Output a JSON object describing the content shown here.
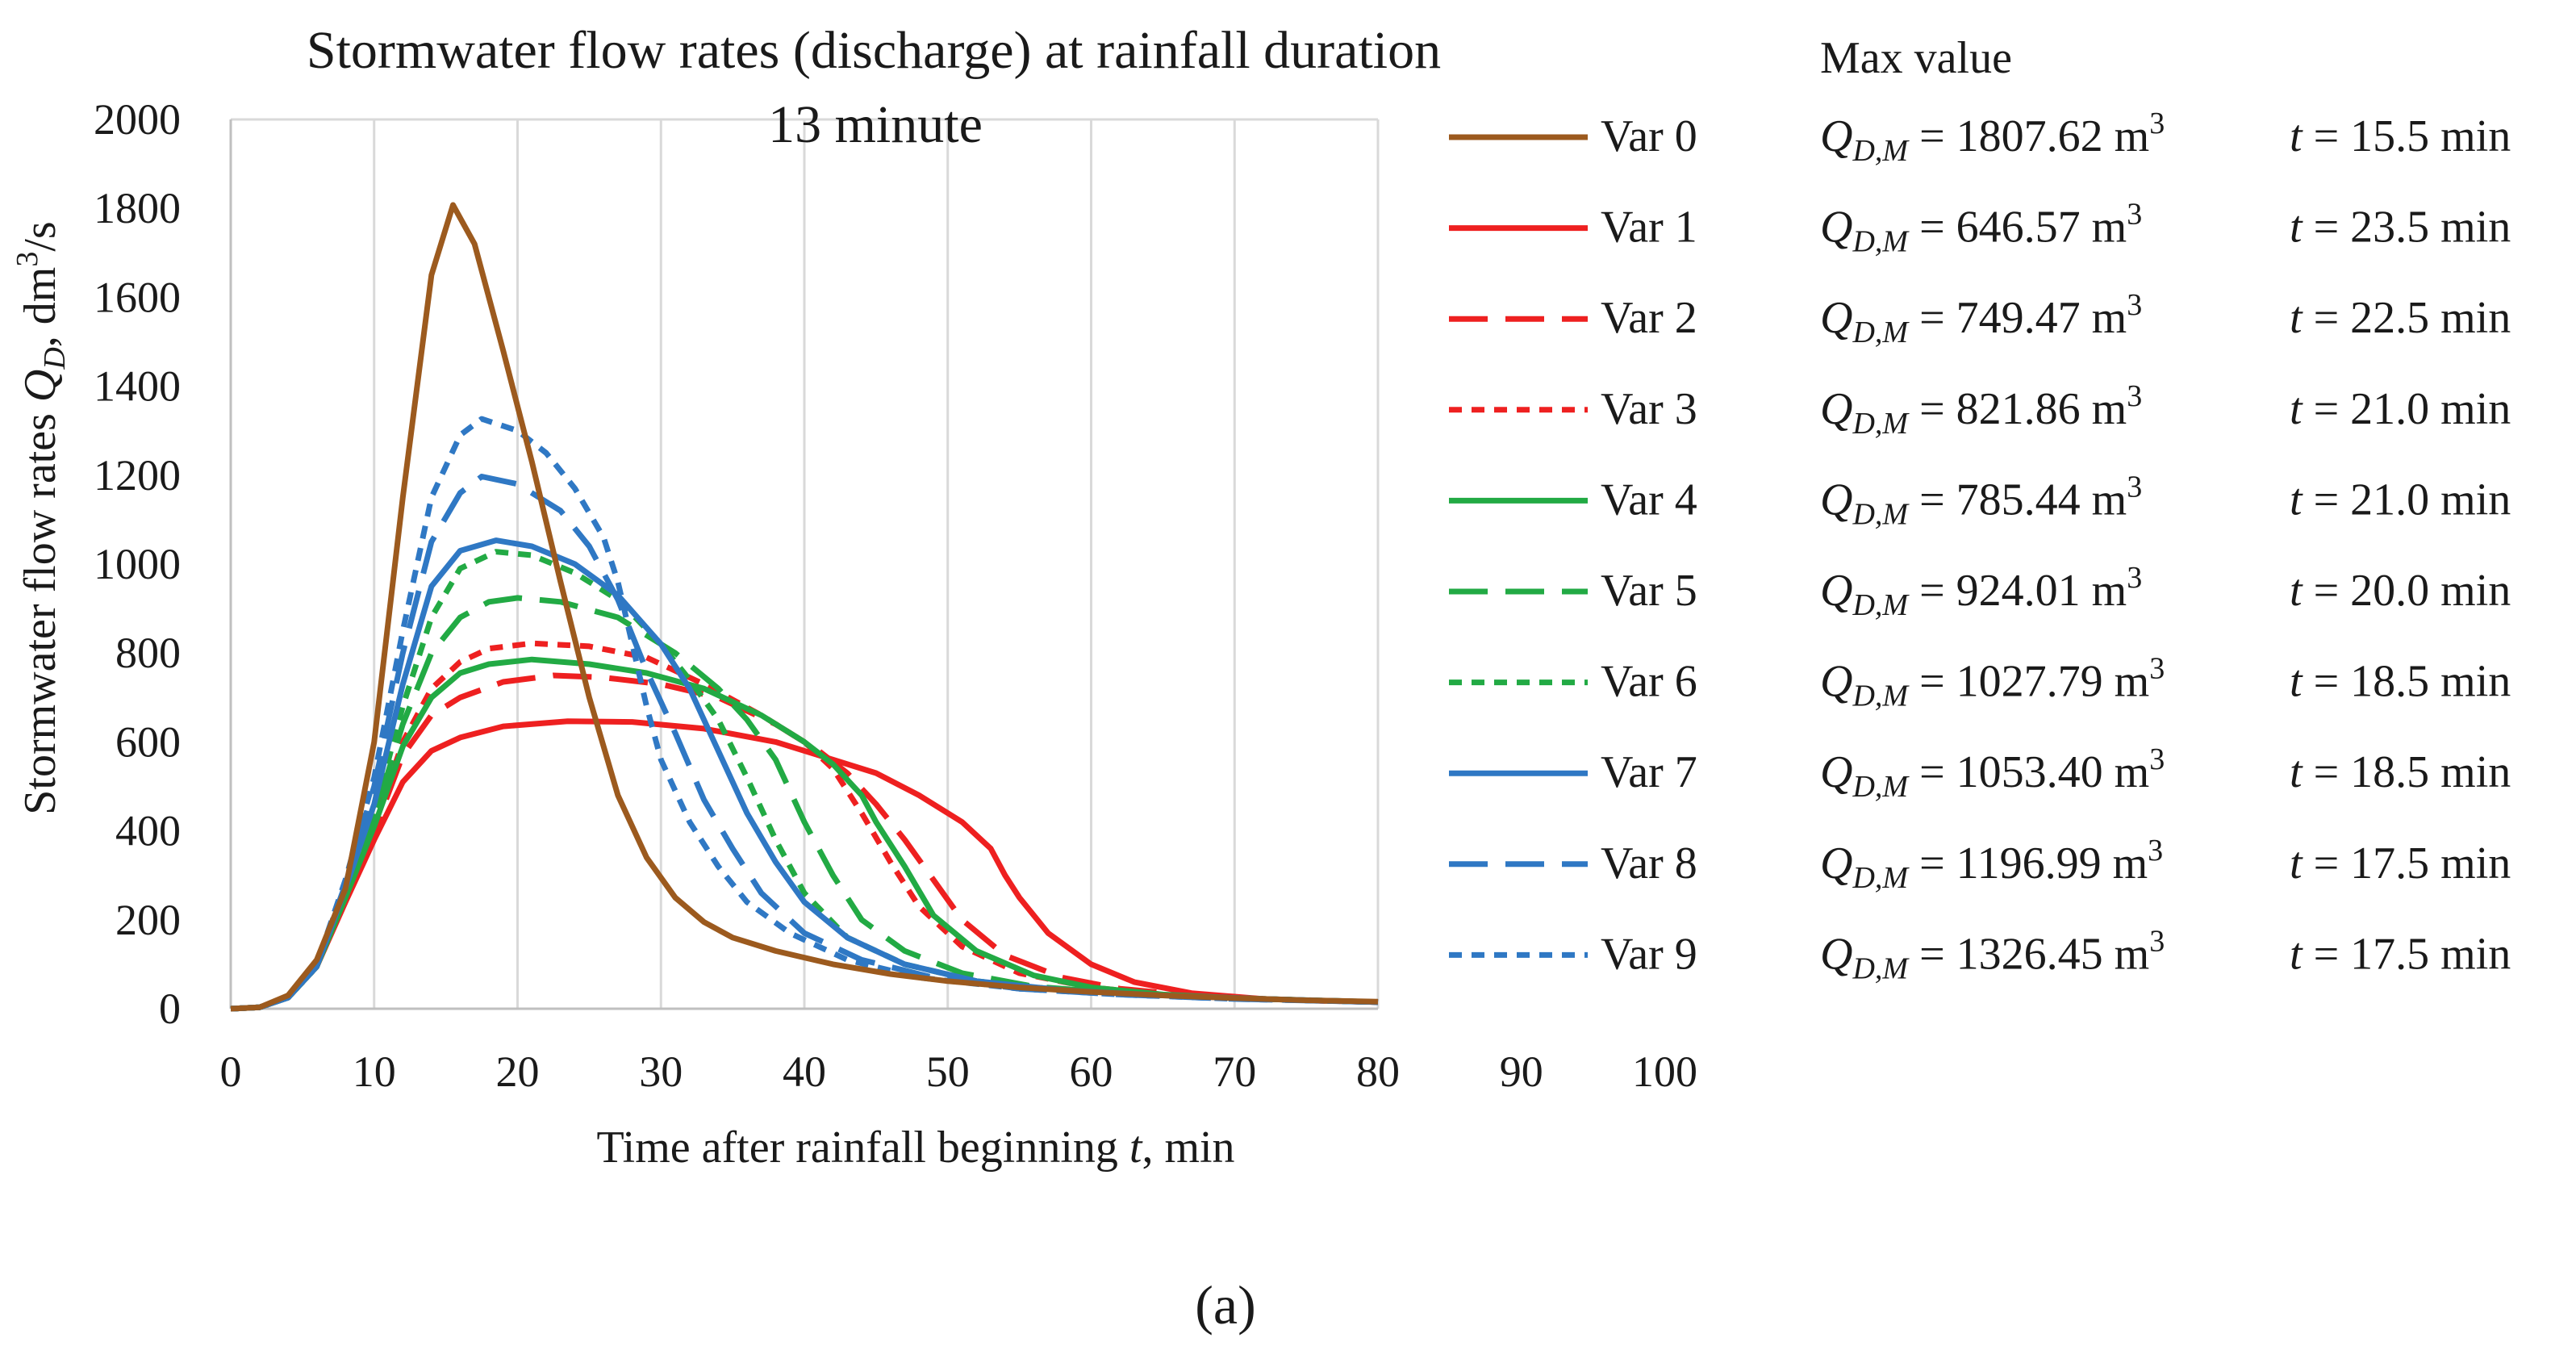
{
  "caption": "(a)",
  "chart_data": {
    "type": "line",
    "title_line1": "Stormwater flow rates (discharge) at rainfall duration",
    "title_line2": "13 minute",
    "xlabel_prefix": "Time after rainfall beginning ",
    "xlabel_var": "t",
    "xlabel_suffix": ", min",
    "ylabel_prefix": "Stormwater flow rates ",
    "ylabel_var": "Q",
    "ylabel_sub": "D",
    "ylabel_mid": ", dm",
    "ylabel_sup": "3",
    "ylabel_suffix": "/s",
    "xlim": [
      0,
      100
    ],
    "ylim": [
      0,
      2000
    ],
    "xticks": [
      0,
      10,
      20,
      30,
      40,
      50,
      60,
      70,
      80,
      90,
      100
    ],
    "yticks": [
      0,
      200,
      400,
      600,
      800,
      1000,
      1200,
      1400,
      1600,
      1800,
      2000
    ],
    "grid": "vertical",
    "legend_header": "Max value",
    "max_label_var": "Q",
    "max_label_sub": "D,M",
    "max_unit": "m",
    "max_unit_sup": "3",
    "time_var": "t",
    "time_unit": "min",
    "series": [
      {
        "name": "Var 0",
        "color": "#9C5A1E",
        "dash": "solid",
        "max": "1807.62",
        "t": "15.5",
        "points": [
          [
            0,
            0
          ],
          [
            2,
            3
          ],
          [
            4,
            30
          ],
          [
            6,
            110
          ],
          [
            8,
            270
          ],
          [
            10,
            600
          ],
          [
            12,
            1150
          ],
          [
            14,
            1650
          ],
          [
            15.5,
            1807.62
          ],
          [
            17,
            1720
          ],
          [
            19,
            1480
          ],
          [
            21,
            1230
          ],
          [
            23,
            960
          ],
          [
            25,
            700
          ],
          [
            27,
            480
          ],
          [
            29,
            340
          ],
          [
            31,
            250
          ],
          [
            33,
            195
          ],
          [
            35,
            160
          ],
          [
            38,
            130
          ],
          [
            42,
            100
          ],
          [
            46,
            78
          ],
          [
            50,
            62
          ],
          [
            55,
            48
          ],
          [
            60,
            38
          ],
          [
            65,
            30
          ],
          [
            70,
            24
          ],
          [
            75,
            19
          ],
          [
            80,
            16
          ]
        ]
      },
      {
        "name": "Var 1",
        "color": "#EE2020",
        "dash": "solid",
        "max": "646.57",
        "t": "23.5",
        "points": [
          [
            0,
            0
          ],
          [
            2,
            3
          ],
          [
            4,
            25
          ],
          [
            6,
            95
          ],
          [
            8,
            240
          ],
          [
            10,
            380
          ],
          [
            12,
            510
          ],
          [
            14,
            580
          ],
          [
            16,
            610
          ],
          [
            19,
            635
          ],
          [
            23.5,
            646.57
          ],
          [
            28,
            645
          ],
          [
            33,
            630
          ],
          [
            38,
            600
          ],
          [
            42,
            560
          ],
          [
            45,
            530
          ],
          [
            48,
            480
          ],
          [
            51,
            420
          ],
          [
            53,
            360
          ],
          [
            54,
            300
          ],
          [
            55,
            250
          ],
          [
            57,
            170
          ],
          [
            60,
            100
          ],
          [
            63,
            60
          ],
          [
            67,
            35
          ],
          [
            72,
            22
          ],
          [
            76,
            18
          ],
          [
            80,
            15
          ]
        ]
      },
      {
        "name": "Var 2",
        "color": "#EE2020",
        "dash": "long",
        "max": "749.47",
        "t": "22.5",
        "points": [
          [
            0,
            0
          ],
          [
            2,
            3
          ],
          [
            4,
            25
          ],
          [
            6,
            95
          ],
          [
            8,
            250
          ],
          [
            10,
            400
          ],
          [
            12,
            570
          ],
          [
            14,
            660
          ],
          [
            16,
            700
          ],
          [
            19,
            735
          ],
          [
            22.5,
            749.47
          ],
          [
            26,
            745
          ],
          [
            30,
            730
          ],
          [
            34,
            700
          ],
          [
            38,
            640
          ],
          [
            41,
            580
          ],
          [
            43,
            530
          ],
          [
            45,
            460
          ],
          [
            47,
            380
          ],
          [
            49,
            290
          ],
          [
            51,
            200
          ],
          [
            54,
            120
          ],
          [
            58,
            70
          ],
          [
            62,
            45
          ],
          [
            67,
            30
          ],
          [
            72,
            22
          ],
          [
            76,
            18
          ],
          [
            80,
            15
          ]
        ]
      },
      {
        "name": "Var 3",
        "color": "#EE2020",
        "dash": "short",
        "max": "821.86",
        "t": "21.0",
        "points": [
          [
            0,
            0
          ],
          [
            2,
            3
          ],
          [
            4,
            25
          ],
          [
            6,
            95
          ],
          [
            8,
            250
          ],
          [
            10,
            410
          ],
          [
            12,
            600
          ],
          [
            14,
            720
          ],
          [
            16,
            780
          ],
          [
            18,
            810
          ],
          [
            21,
            821.86
          ],
          [
            25,
            815
          ],
          [
            29,
            790
          ],
          [
            33,
            730
          ],
          [
            37,
            660
          ],
          [
            40,
            600
          ],
          [
            42,
            540
          ],
          [
            44,
            440
          ],
          [
            46,
            330
          ],
          [
            48,
            230
          ],
          [
            51,
            140
          ],
          [
            55,
            80
          ],
          [
            60,
            48
          ],
          [
            65,
            32
          ],
          [
            70,
            24
          ],
          [
            75,
            19
          ],
          [
            80,
            15
          ]
        ]
      },
      {
        "name": "Var 4",
        "color": "#22AA44",
        "dash": "solid",
        "max": "785.44",
        "t": "21.0",
        "points": [
          [
            0,
            0
          ],
          [
            2,
            3
          ],
          [
            4,
            25
          ],
          [
            6,
            95
          ],
          [
            8,
            250
          ],
          [
            10,
            410
          ],
          [
            12,
            590
          ],
          [
            14,
            700
          ],
          [
            16,
            755
          ],
          [
            18,
            775
          ],
          [
            21,
            785.44
          ],
          [
            25,
            775
          ],
          [
            29,
            755
          ],
          [
            33,
            720
          ],
          [
            37,
            660
          ],
          [
            40,
            600
          ],
          [
            42,
            550
          ],
          [
            44,
            480
          ],
          [
            45,
            420
          ],
          [
            47,
            320
          ],
          [
            49,
            210
          ],
          [
            52,
            130
          ],
          [
            56,
            75
          ],
          [
            60,
            48
          ],
          [
            65,
            32
          ],
          [
            70,
            24
          ],
          [
            75,
            19
          ],
          [
            80,
            15
          ]
        ]
      },
      {
        "name": "Var 5",
        "color": "#22AA44",
        "dash": "long",
        "max": "924.01",
        "t": "20.0",
        "points": [
          [
            0,
            0
          ],
          [
            2,
            3
          ],
          [
            4,
            25
          ],
          [
            6,
            95
          ],
          [
            8,
            260
          ],
          [
            10,
            430
          ],
          [
            12,
            640
          ],
          [
            14,
            800
          ],
          [
            16,
            880
          ],
          [
            18,
            915
          ],
          [
            20,
            924.01
          ],
          [
            23,
            915
          ],
          [
            27,
            880
          ],
          [
            31,
            800
          ],
          [
            34,
            720
          ],
          [
            36,
            650
          ],
          [
            38,
            560
          ],
          [
            40,
            420
          ],
          [
            42,
            300
          ],
          [
            44,
            200
          ],
          [
            47,
            130
          ],
          [
            51,
            80
          ],
          [
            56,
            50
          ],
          [
            62,
            35
          ],
          [
            68,
            26
          ],
          [
            74,
            20
          ],
          [
            80,
            15
          ]
        ]
      },
      {
        "name": "Var 6",
        "color": "#22AA44",
        "dash": "short",
        "max": "1027.79",
        "t": "18.5",
        "points": [
          [
            0,
            0
          ],
          [
            2,
            3
          ],
          [
            4,
            25
          ],
          [
            6,
            95
          ],
          [
            8,
            260
          ],
          [
            10,
            440
          ],
          [
            12,
            680
          ],
          [
            14,
            880
          ],
          [
            16,
            990
          ],
          [
            18.5,
            1027.79
          ],
          [
            21,
            1020
          ],
          [
            24,
            980
          ],
          [
            27,
            920
          ],
          [
            30,
            820
          ],
          [
            32,
            740
          ],
          [
            34,
            650
          ],
          [
            36,
            520
          ],
          [
            38,
            380
          ],
          [
            40,
            260
          ],
          [
            43,
            160
          ],
          [
            47,
            100
          ],
          [
            52,
            62
          ],
          [
            58,
            42
          ],
          [
            65,
            30
          ],
          [
            72,
            22
          ],
          [
            80,
            15
          ]
        ]
      },
      {
        "name": "Var 7",
        "color": "#2F78C4",
        "dash": "solid",
        "max": "1053.40",
        "t": "18.5",
        "points": [
          [
            0,
            0
          ],
          [
            2,
            3
          ],
          [
            4,
            25
          ],
          [
            6,
            95
          ],
          [
            8,
            270
          ],
          [
            10,
            460
          ],
          [
            12,
            730
          ],
          [
            14,
            950
          ],
          [
            16,
            1030
          ],
          [
            18.5,
            1053.4
          ],
          [
            21,
            1040
          ],
          [
            24,
            1000
          ],
          [
            27,
            930
          ],
          [
            30,
            820
          ],
          [
            32,
            720
          ],
          [
            34,
            580
          ],
          [
            36,
            440
          ],
          [
            38,
            330
          ],
          [
            40,
            240
          ],
          [
            43,
            160
          ],
          [
            47,
            100
          ],
          [
            52,
            62
          ],
          [
            58,
            42
          ],
          [
            65,
            30
          ],
          [
            72,
            22
          ],
          [
            80,
            15
          ]
        ]
      },
      {
        "name": "Var 8",
        "color": "#2F78C4",
        "dash": "long",
        "max": "1196.99",
        "t": "17.5",
        "points": [
          [
            0,
            0
          ],
          [
            2,
            3
          ],
          [
            4,
            25
          ],
          [
            6,
            100
          ],
          [
            8,
            280
          ],
          [
            10,
            500
          ],
          [
            12,
            800
          ],
          [
            14,
            1050
          ],
          [
            16,
            1160
          ],
          [
            17.5,
            1196.99
          ],
          [
            20,
            1180
          ],
          [
            23,
            1120
          ],
          [
            25,
            1040
          ],
          [
            27,
            920
          ],
          [
            29,
            760
          ],
          [
            31,
            620
          ],
          [
            33,
            470
          ],
          [
            35,
            360
          ],
          [
            37,
            260
          ],
          [
            40,
            170
          ],
          [
            44,
            110
          ],
          [
            49,
            70
          ],
          [
            55,
            45
          ],
          [
            62,
            32
          ],
          [
            70,
            22
          ],
          [
            80,
            15
          ]
        ]
      },
      {
        "name": "Var 9",
        "color": "#2F78C4",
        "dash": "short",
        "max": "1326.45",
        "t": "17.5",
        "points": [
          [
            0,
            0
          ],
          [
            2,
            3
          ],
          [
            4,
            25
          ],
          [
            6,
            100
          ],
          [
            8,
            290
          ],
          [
            10,
            520
          ],
          [
            12,
            850
          ],
          [
            14,
            1150
          ],
          [
            16,
            1290
          ],
          [
            17.5,
            1326.45
          ],
          [
            20,
            1300
          ],
          [
            22,
            1250
          ],
          [
            24,
            1170
          ],
          [
            26,
            1060
          ],
          [
            27,
            960
          ],
          [
            28,
            820
          ],
          [
            29,
            680
          ],
          [
            30,
            560
          ],
          [
            32,
            420
          ],
          [
            34,
            320
          ],
          [
            36,
            240
          ],
          [
            39,
            170
          ],
          [
            43,
            110
          ],
          [
            48,
            70
          ],
          [
            55,
            45
          ],
          [
            62,
            32
          ],
          [
            70,
            22
          ],
          [
            80,
            15
          ]
        ]
      }
    ]
  }
}
